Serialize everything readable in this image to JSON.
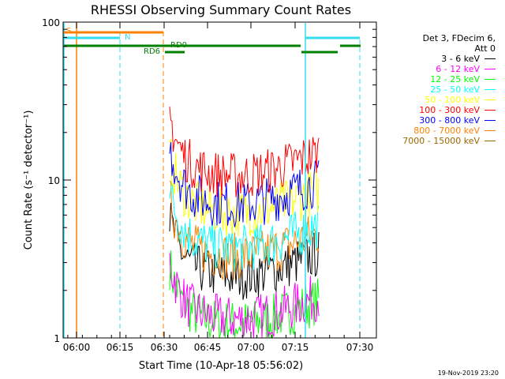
{
  "chart_data": {
    "type": "line",
    "title": "RHESSI Observing Summary Count Rates",
    "xlabel": "Start Time (10-Apr-18 05:56:02)",
    "ylabel": "Count Rate (s⁻¹ detector⁻¹)",
    "yscale": "log",
    "ylim": [
      1,
      100
    ],
    "x_tick_labels": [
      "06:00",
      "06:15",
      "06:30",
      "06:45",
      "07:00",
      "07:15",
      "07:30"
    ],
    "y_tick_labels": [
      "1",
      "10",
      "100"
    ],
    "legend_header": [
      "Det 3, FDecim 6,",
      "Att 0"
    ],
    "legend_placement": "right",
    "footer_date": "19-Nov-2019 23:20",
    "series": [
      {
        "name": "3 - 6 keV",
        "color": "#000000",
        "level": 3.0
      },
      {
        "name": "6 - 12 keV",
        "color": "#ff00ff",
        "level": 1.6
      },
      {
        "name": "12 - 25 keV",
        "color": "#00ff00",
        "level": 1.5
      },
      {
        "name": "25 - 50 keV",
        "color": "#00ffff",
        "level": 4.5
      },
      {
        "name": "50 - 100 keV",
        "color": "#ffff00",
        "level": 7.5
      },
      {
        "name": "100 - 300 keV",
        "color": "#ff0000",
        "level": 13.0
      },
      {
        "name": "300 - 800 keV",
        "color": "#0000ff",
        "level": 8.5
      },
      {
        "name": "800 - 7000 keV",
        "color": "#ff8000",
        "level": 4.0
      },
      {
        "name": "7000 - 15000 keV",
        "color": "#996600",
        "level": 0.9
      }
    ],
    "flags": [
      {
        "label": "S",
        "color": "#ff8000"
      },
      {
        "label": "N",
        "color": "#33ddee"
      },
      {
        "label": "RD0",
        "color": "#008000"
      },
      {
        "label": "RD6",
        "color": "#008000"
      }
    ]
  }
}
